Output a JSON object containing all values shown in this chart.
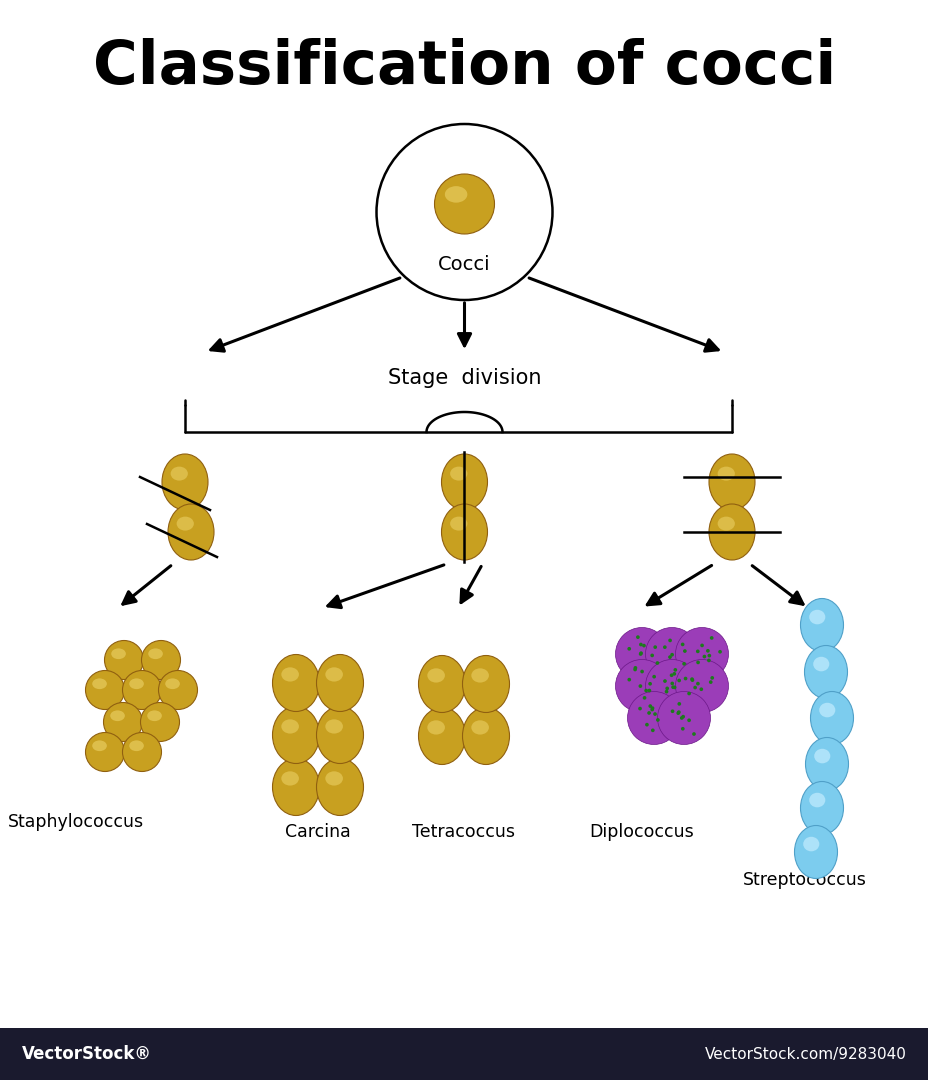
{
  "title": "Classification of cocci",
  "title_fontsize": 44,
  "title_fontweight": "bold",
  "bg_color": "#ffffff",
  "footer_color": "#1a1a2e",
  "footer_text_left": "VectorStock®",
  "footer_text_right": "VectorStock.com/9283040",
  "gold_base": "#C8A020",
  "gold_dark": "#906010",
  "gold_hi": "#F0D870",
  "purple_base": "#9B3DB8",
  "purple_dark": "#6B1888",
  "blue_base": "#7CCCEE",
  "blue_hi": "#C8EEFF",
  "green_dot": "#1E7A1E",
  "labels": {
    "cocci": "Cocci",
    "stage": "Stage  division",
    "staph": "Staphylococcus",
    "carcina": "Carcina",
    "tetra": "Tetracoccus",
    "diplo": "Diplococcus",
    "strepto": "Streptococcus"
  }
}
